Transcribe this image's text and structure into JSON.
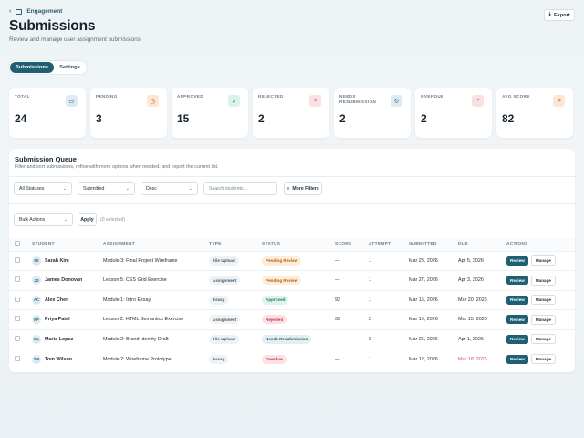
{
  "breadcrumb": {
    "label": "Engagement"
  },
  "header": {
    "title": "Submissions",
    "subtitle": "Review and manage user assignment submissions",
    "export_label": "Export"
  },
  "tabs": [
    {
      "label": "Submissions",
      "active": true
    },
    {
      "label": "Settings",
      "active": false
    }
  ],
  "stats": [
    {
      "label": "TOTAL",
      "value": "24",
      "icon": "inbox-icon",
      "color": "#dcecf2"
    },
    {
      "label": "PENDING",
      "value": "3",
      "icon": "clock-icon",
      "color": "#fde6d3"
    },
    {
      "label": "APPROVED",
      "value": "15",
      "icon": "check-circle-icon",
      "color": "#d9f2eb"
    },
    {
      "label": "REJECTED",
      "value": "2",
      "icon": "x-icon",
      "color": "#fbe0e3"
    },
    {
      "label": "NEEDS RESUBMISSION",
      "value": "2",
      "icon": "refresh-icon",
      "color": "#dcecf2"
    },
    {
      "label": "OVERDUE",
      "value": "2",
      "icon": "alarm-icon",
      "color": "#fbe0e3"
    },
    {
      "label": "AVG SCORE",
      "value": "82",
      "icon": "trend-icon",
      "color": "#fde6d3"
    }
  ],
  "queue": {
    "title": "Submission Queue",
    "subtitle": "Filter and sort submissions, refine with more options when needed, and export the current list.",
    "filters": {
      "status": "All Statuses",
      "sort": "Submitted",
      "order": "Desc",
      "search_placeholder": "Search students...",
      "more_filters": "More Filters"
    },
    "bulk": {
      "label": "Bulk Actions",
      "apply": "Apply",
      "selected": "(0 selected)"
    },
    "columns": [
      "STUDENT",
      "ASSIGNMENT",
      "TYPE",
      "STATUS",
      "SCORE",
      "ATTEMPT",
      "SUBMITTED",
      "DUE",
      "ACTIONS"
    ],
    "review_label": "Review",
    "manage_label": "Manage",
    "rows": [
      {
        "initials": "SK",
        "student": "Sarah Kim",
        "assignment": "Module 3: Final Project Wireframe",
        "type": "File Upload",
        "status": "Pending Review",
        "status_class": "st-pending",
        "score": "—",
        "attempt": "1",
        "submitted": "Mar 28, 2026",
        "due": "Apr 5, 2026",
        "due_overdue": false
      },
      {
        "initials": "JD",
        "student": "James Donovan",
        "assignment": "Lesson 5: CSS Grid Exercise",
        "type": "Assignment",
        "status": "Pending Review",
        "status_class": "st-pending",
        "score": "—",
        "attempt": "1",
        "submitted": "Mar 27, 2026",
        "due": "Apr 3, 2026",
        "due_overdue": false
      },
      {
        "initials": "AC",
        "student": "Alex Chen",
        "assignment": "Module 1: Intro Essay",
        "type": "Essay",
        "status": "Approved",
        "status_class": "st-approved",
        "score": "92",
        "attempt": "1",
        "submitted": "Mar 15, 2026",
        "due": "Mar 20, 2026",
        "due_overdue": false
      },
      {
        "initials": "PP",
        "student": "Priya Patel",
        "assignment": "Lesson 2: HTML Semantics Exercise",
        "type": "Assignment",
        "status": "Rejected",
        "status_class": "st-rejected",
        "score": "35",
        "attempt": "2",
        "submitted": "Mar 10, 2026",
        "due": "Mar 15, 2026",
        "due_overdue": false
      },
      {
        "initials": "ML",
        "student": "Maria Lopez",
        "assignment": "Module 2: Brand Identity Draft",
        "type": "File Upload",
        "status": "Needs Resubmission",
        "status_class": "st-resub",
        "score": "—",
        "attempt": "2",
        "submitted": "Mar 26, 2026",
        "due": "Apr 1, 2026",
        "due_overdue": false
      },
      {
        "initials": "TW",
        "student": "Tom Wilson",
        "assignment": "Module 2: Wireframe Prototype",
        "type": "Essay",
        "status": "Overdue",
        "status_class": "st-overdue",
        "score": "—",
        "attempt": "1",
        "submitted": "Mar 12, 2026",
        "due": "Mar 18, 2026",
        "due_overdue": true
      }
    ]
  }
}
